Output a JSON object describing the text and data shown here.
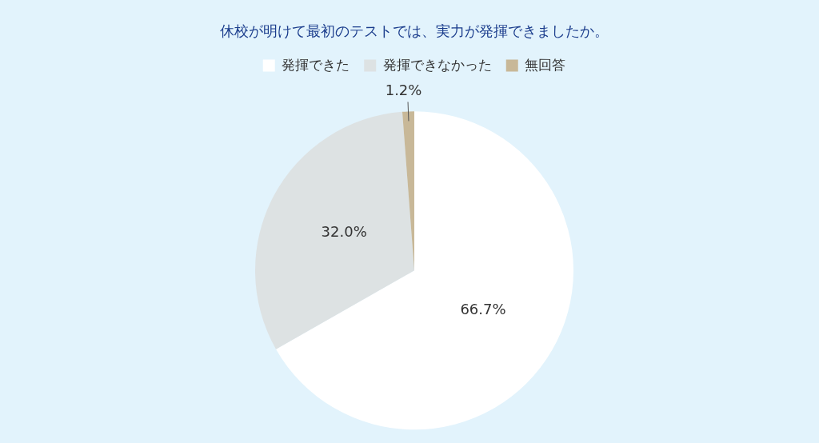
{
  "chart_data": {
    "type": "pie",
    "title": "休校が明けて最初のテストでは、実力が発揮できましたか。",
    "categories": [
      "発揮できた",
      "発揮できなかった",
      "無回答"
    ],
    "values": [
      66.7,
      32.0,
      1.2
    ],
    "colors": [
      "#ffffff",
      "#dde2e3",
      "#c8b898"
    ],
    "value_labels": [
      "66.7%",
      "32.0%",
      "1.2%"
    ],
    "legend": "top"
  }
}
